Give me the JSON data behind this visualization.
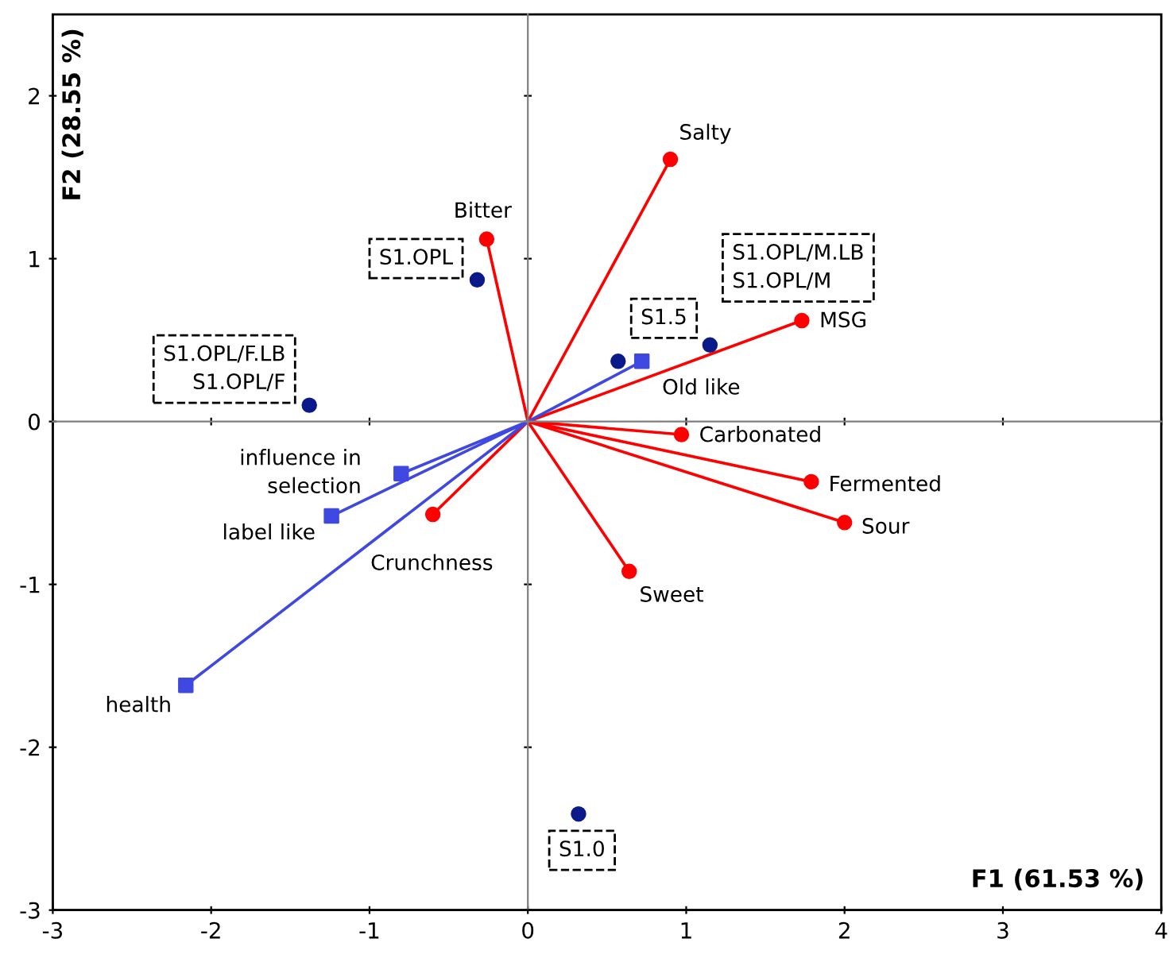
{
  "chart_data": {
    "type": "scatter",
    "xlabel": "F1 (61.53 %)",
    "ylabel": "F2 (28.55 %)",
    "xlim": [
      -3,
      4
    ],
    "ylim": [
      -3,
      2.5
    ],
    "xticks": [
      -3,
      -2,
      -1,
      0,
      1,
      2,
      3,
      4
    ],
    "yticks": [
      -3,
      -2,
      -1,
      0,
      1,
      2
    ],
    "series": [
      {
        "type": "line",
        "color": "#ff0000",
        "marker": "none",
        "x": [
          0,
          0.9,
          null,
          0,
          -0.26,
          null,
          0,
          1.73,
          null,
          0,
          0.97,
          null,
          0,
          1.79,
          null,
          0,
          2.0,
          null,
          0,
          0.64,
          null,
          0,
          -0.6,
          null
        ],
        "values": [
          0,
          1.61,
          null,
          0,
          1.12,
          null,
          0,
          0.62,
          null,
          0,
          -0.08,
          null,
          0,
          -0.37,
          null,
          0,
          -0.62,
          null,
          0,
          -0.92,
          null,
          0,
          -0.57,
          null
        ]
      },
      {
        "type": "line",
        "color": "#3f48e0",
        "marker": "none",
        "x": [
          0,
          0.72,
          null,
          0,
          -0.8,
          null,
          0,
          -1.24,
          null,
          0,
          -2.16,
          null
        ],
        "values": [
          0,
          0.37,
          null,
          0,
          -0.32,
          null,
          0,
          -0.58,
          null,
          0,
          -1.62,
          null
        ]
      },
      {
        "color": "#ff0000",
        "marker": "circle",
        "x": [
          0.9,
          -0.26,
          1.73,
          0.97,
          1.79,
          2.0,
          0.64,
          -0.6
        ],
        "values": [
          1.61,
          1.12,
          0.62,
          -0.08,
          -0.37,
          -0.62,
          -0.92,
          -0.57
        ]
      },
      {
        "color": "#3f48e0",
        "marker": "square",
        "x": [
          0.72,
          -0.8,
          -1.24,
          -2.16
        ],
        "values": [
          0.37,
          -0.32,
          -0.58,
          -1.62
        ]
      },
      {
        "color": "#0a1a8a",
        "marker": "circle",
        "x": [
          -0.32,
          -1.38,
          0.57,
          1.15,
          0.32
        ],
        "values": [
          0.87,
          0.1,
          0.37,
          0.47,
          -2.41
        ]
      }
    ],
    "annotations": [
      {
        "text": "S1.OPL",
        "x": -0.32,
        "y": 0.87
      },
      {
        "text": "S1.OPL/F.LB\nS1.OPL/F",
        "x": -1.38,
        "y": 0.1
      },
      {
        "text": "S1.5",
        "x": 0.57,
        "y": 0.37
      },
      {
        "text": "S1.OPL/M.LB\nS1.OPL/M",
        "x": 1.15,
        "y": 0.47
      },
      {
        "text": "S1.0",
        "x": 0.32,
        "y": -2.41
      },
      {
        "text": "Salty",
        "x": 0.9,
        "y": 1.61
      },
      {
        "text": "Bitter",
        "x": -0.26,
        "y": 1.12
      },
      {
        "text": "MSG",
        "x": 1.73,
        "y": 0.62
      },
      {
        "text": "Carbonated",
        "x": 0.97,
        "y": -0.08
      },
      {
        "text": "Fermented",
        "x": 1.79,
        "y": -0.37
      },
      {
        "text": "Sour",
        "x": 2.0,
        "y": -0.62
      },
      {
        "text": "Sweet",
        "x": 0.64,
        "y": -0.92
      },
      {
        "text": "Crunchness",
        "x": -0.6,
        "y": -0.57
      },
      {
        "text": "Old like",
        "x": 0.72,
        "y": 0.37
      },
      {
        "text": "influence in\nselection",
        "x": -0.8,
        "y": -0.32
      },
      {
        "text": "label like",
        "x": -1.24,
        "y": -0.58
      },
      {
        "text": "health",
        "x": -2.16,
        "y": -1.62
      }
    ]
  }
}
